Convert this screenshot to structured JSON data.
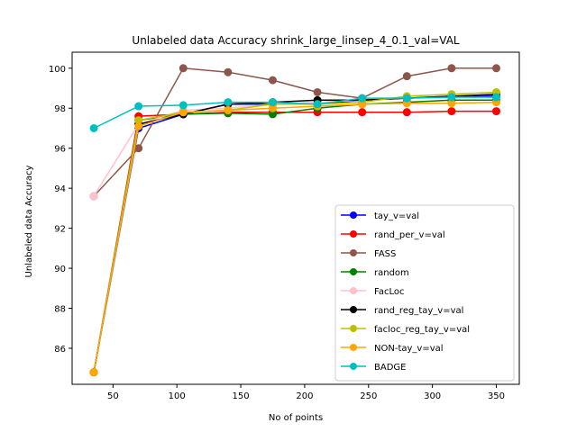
{
  "chart_data": {
    "type": "line",
    "title": "Unlabeled data Accuracy shrink_large_linsep_4_0.1_val=VAL",
    "xlabel": "No of points",
    "ylabel": "Unlabeled data Accuracy",
    "xlim": [
      18,
      368
    ],
    "ylim": [
      84.2,
      100.8
    ],
    "xticks": [
      50,
      100,
      150,
      200,
      250,
      300,
      350
    ],
    "yticks": [
      86,
      88,
      90,
      92,
      94,
      96,
      98,
      100
    ],
    "grid": false,
    "legend_position": "lower-right",
    "x": [
      35,
      70,
      105,
      140,
      175,
      210,
      245,
      280,
      315,
      350
    ],
    "series": [
      {
        "name": "tay_v=val",
        "color": "#0000ff",
        "values": [
          84.8,
          97.0,
          97.7,
          98.2,
          98.2,
          98.2,
          98.4,
          98.5,
          98.6,
          98.6
        ]
      },
      {
        "name": "rand_per_v=val",
        "color": "#ff0000",
        "values": [
          84.8,
          97.6,
          97.7,
          97.8,
          97.8,
          97.8,
          97.8,
          97.8,
          97.85,
          97.85
        ]
      },
      {
        "name": "FASS",
        "color": "#8c564b",
        "values": [
          93.6,
          96.0,
          100.0,
          99.8,
          99.4,
          98.8,
          98.5,
          99.6,
          100.0,
          100.0
        ]
      },
      {
        "name": "random",
        "color": "#008000",
        "values": [
          84.8,
          97.4,
          97.7,
          97.75,
          97.7,
          98.0,
          98.2,
          98.3,
          98.4,
          98.4
        ]
      },
      {
        "name": "FacLoc",
        "color": "#ffc0cb",
        "values": [
          93.6,
          97.2,
          97.9,
          98.0,
          98.2,
          98.3,
          98.4,
          98.5,
          98.6,
          98.7
        ]
      },
      {
        "name": "rand_reg_tay_v=val",
        "color": "#000000",
        "values": [
          84.8,
          97.2,
          97.7,
          98.2,
          98.3,
          98.4,
          98.4,
          98.5,
          98.6,
          98.7
        ]
      },
      {
        "name": "facloc_reg_tay_v=val",
        "color": "#bfbf00",
        "values": [
          84.8,
          97.4,
          97.8,
          97.9,
          98.2,
          98.2,
          98.3,
          98.6,
          98.7,
          98.8
        ]
      },
      {
        "name": "NON-tay_v=val",
        "color": "#ffa500",
        "values": [
          84.8,
          97.1,
          97.8,
          97.9,
          98.0,
          98.1,
          98.2,
          98.25,
          98.25,
          98.3
        ]
      },
      {
        "name": "BADGE",
        "color": "#00bfbf",
        "values": [
          97.0,
          98.1,
          98.15,
          98.3,
          98.3,
          98.2,
          98.5,
          98.5,
          98.55,
          98.55
        ]
      }
    ]
  }
}
